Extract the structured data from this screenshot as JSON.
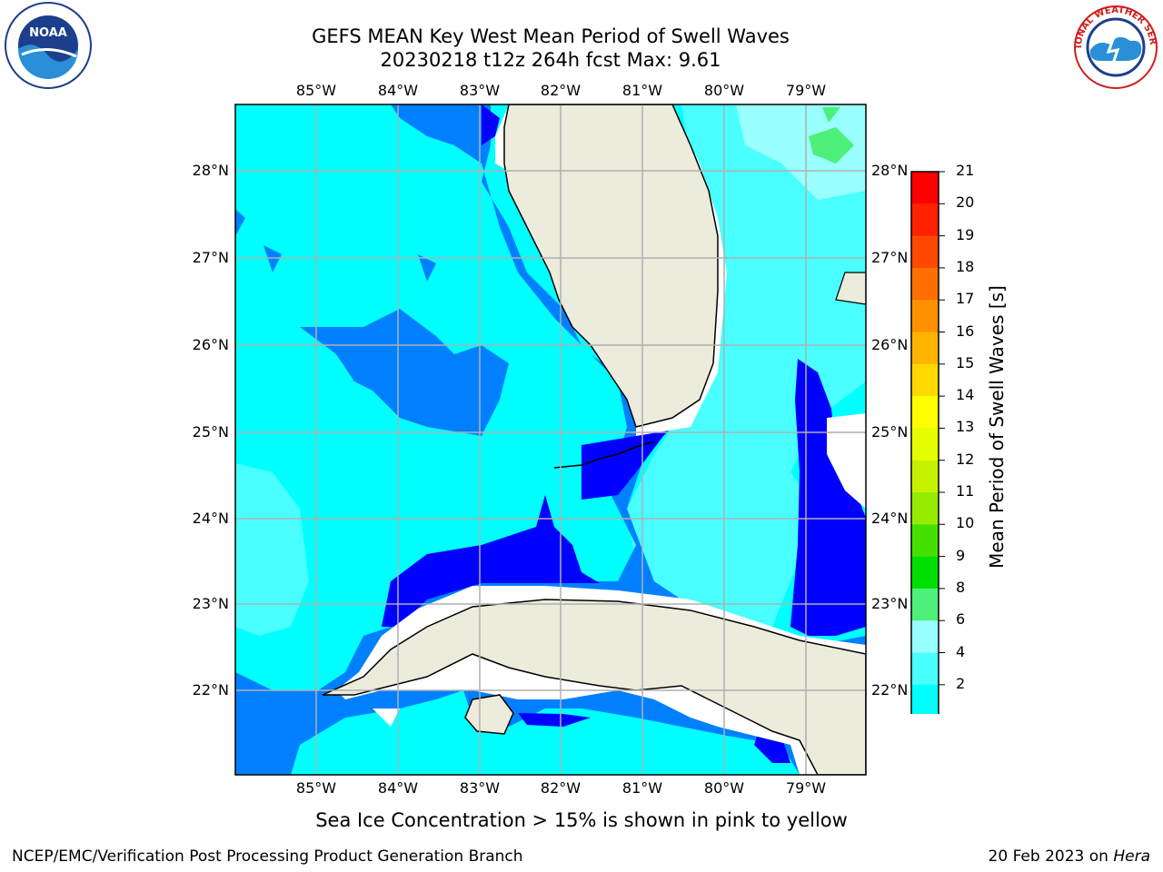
{
  "title": {
    "line1": "GEFS MEAN Key West Mean Period of Swell Waves",
    "line2": "20230218 t12z 264h fcst    Max: 9.61"
  },
  "logos": {
    "left": "noaa-logo",
    "right": "nws-logo",
    "left_text": "NOAA",
    "right_text": "NATIONAL WEATHER SERVICE"
  },
  "map": {
    "longitude_labels": [
      "85°W",
      "84°W",
      "83°W",
      "82°W",
      "81°W",
      "80°W",
      "79°W"
    ],
    "latitude_labels": [
      "28°N",
      "27°N",
      "26°N",
      "25°N",
      "24°N",
      "23°N",
      "22°N"
    ],
    "fill_colors": {
      "2-4": "#0080ff",
      "4-6": "#00ffff",
      "6-8": "#49ffff",
      "8-9": "#99ffff",
      "9-10": "#4df07a",
      "below-2": "#0000ff",
      "land": "#ecebdc",
      "no-data": "#ffffff"
    }
  },
  "colorbar": {
    "label": "Mean Period of Swell Waves [s]",
    "ticks": [
      "21",
      "20",
      "19",
      "18",
      "17",
      "16",
      "15",
      "14",
      "13",
      "12",
      "11",
      "10",
      "9",
      "8",
      "6",
      "4",
      "2"
    ],
    "colors": [
      "#ff0000",
      "#ff2200",
      "#ff4800",
      "#ff6e00",
      "#ff9000",
      "#ffb400",
      "#ffd800",
      "#ffff00",
      "#e6ff00",
      "#c6f200",
      "#96ec00",
      "#46e000",
      "#00e000",
      "#4df07a",
      "#99ffff",
      "#49ffff",
      "#00ffff",
      "#0080ff",
      "#0000ff"
    ]
  },
  "footer": {
    "note": "Sea Ice Concentration > 15% is shown in pink to yellow",
    "credit": "NCEP/EMC/Verification Post Processing Product Generation Branch",
    "date": "20 Feb 2023 on",
    "host": "Hera"
  }
}
